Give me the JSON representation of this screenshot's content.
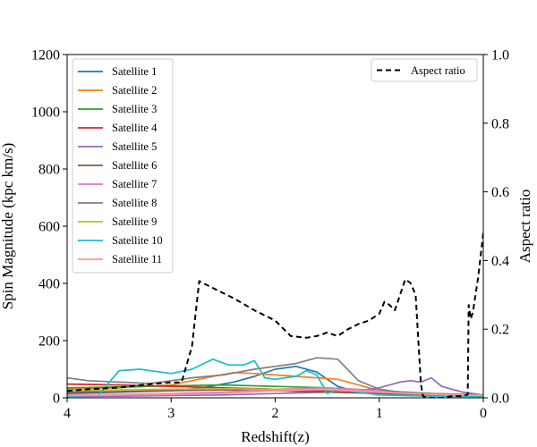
{
  "chart_data": {
    "type": "line",
    "xlabel": "Redshift(z)",
    "ylabel": "Spin Magnitude (kpc km/s)",
    "y2label": "Aspect ratio",
    "xlim": [
      4,
      0
    ],
    "ylim": [
      0,
      1200
    ],
    "y2lim": [
      0,
      1.0
    ],
    "x_ticks": [
      "4",
      "3",
      "2",
      "1",
      "0"
    ],
    "y_ticks": [
      "0",
      "200",
      "400",
      "600",
      "800",
      "1000",
      "1200"
    ],
    "y2_ticks": [
      "0.0",
      "0.2",
      "0.4",
      "0.6",
      "0.8",
      "1.0"
    ],
    "grid": false,
    "legend_left_position": "upper-left",
    "legend_right_position": "upper-right",
    "series": [
      {
        "name": "Satellite 1",
        "color": "#1f77b4",
        "axis": "left",
        "x": [
          4.0,
          3.5,
          3.0,
          2.7,
          2.4,
          2.2,
          2.0,
          1.8,
          1.6,
          1.4,
          1.2,
          1.0,
          0.8,
          0.6,
          0.4,
          0.2,
          0.0
        ],
        "y": [
          15,
          20,
          25,
          35,
          55,
          75,
          100,
          110,
          90,
          40,
          20,
          15,
          12,
          10,
          8,
          6,
          5
        ]
      },
      {
        "name": "Satellite 2",
        "color": "#ff7f0e",
        "axis": "left",
        "x": [
          4.0,
          3.5,
          3.0,
          2.8,
          2.6,
          2.4,
          2.2,
          2.0,
          1.8,
          1.6,
          1.4,
          1.2,
          1.0,
          0.8,
          0.6,
          0.4,
          0.2,
          0.0
        ],
        "y": [
          30,
          35,
          45,
          60,
          75,
          88,
          85,
          80,
          75,
          70,
          65,
          45,
          25,
          20,
          15,
          12,
          10,
          8
        ]
      },
      {
        "name": "Satellite 3",
        "color": "#2ca02c",
        "axis": "left",
        "x": [
          4.0,
          3.5,
          3.0,
          2.5,
          2.0,
          1.5,
          1.0,
          0.5,
          0.0
        ],
        "y": [
          35,
          38,
          42,
          45,
          40,
          35,
          25,
          15,
          10
        ]
      },
      {
        "name": "Satellite 4",
        "color": "#d62728",
        "axis": "left",
        "x": [
          4.0,
          3.5,
          3.0,
          2.5,
          2.0,
          1.5,
          1.0,
          0.5,
          0.0
        ],
        "y": [
          48,
          45,
          40,
          35,
          30,
          25,
          18,
          10,
          8
        ]
      },
      {
        "name": "Satellite 5",
        "color": "#9467bd",
        "axis": "left",
        "x": [
          4.0,
          3.5,
          3.0,
          2.5,
          2.0,
          1.5,
          1.2,
          1.0,
          0.9,
          0.8,
          0.7,
          0.6,
          0.5,
          0.4,
          0.3,
          0.2,
          0.1,
          0.0
        ],
        "y": [
          5,
          6,
          8,
          10,
          15,
          20,
          25,
          35,
          45,
          55,
          60,
          55,
          70,
          40,
          30,
          20,
          15,
          10
        ]
      },
      {
        "name": "Satellite 6",
        "color": "#8c564b",
        "axis": "left",
        "x": [
          4.0,
          3.5,
          3.0,
          2.5,
          2.0,
          1.5,
          1.0,
          0.5,
          0.0
        ],
        "y": [
          20,
          22,
          25,
          28,
          25,
          20,
          15,
          12,
          8
        ]
      },
      {
        "name": "Satellite 7",
        "color": "#e377c2",
        "axis": "left",
        "x": [
          4.0,
          3.5,
          3.0,
          2.5,
          2.0,
          1.5,
          1.0,
          0.5,
          0.0
        ],
        "y": [
          10,
          12,
          15,
          20,
          30,
          35,
          25,
          15,
          10
        ]
      },
      {
        "name": "Satellite 8",
        "color": "#7f7f7f",
        "axis": "left",
        "x": [
          4.0,
          3.8,
          3.5,
          3.2,
          3.0,
          2.8,
          2.5,
          2.2,
          2.0,
          1.8,
          1.6,
          1.4,
          1.2,
          1.0,
          0.8,
          0.5,
          0.0
        ],
        "y": [
          70,
          60,
          55,
          50,
          60,
          70,
          80,
          100,
          110,
          120,
          140,
          135,
          60,
          30,
          20,
          15,
          10
        ]
      },
      {
        "name": "Satellite 9",
        "color": "#bcbd22",
        "axis": "left",
        "x": [
          4.0,
          3.5,
          3.0,
          2.5,
          2.0,
          1.5,
          1.0,
          0.5,
          0.0
        ],
        "y": [
          25,
          28,
          30,
          32,
          30,
          28,
          20,
          12,
          8
        ]
      },
      {
        "name": "Satellite 10",
        "color": "#17becf",
        "axis": "left",
        "x": [
          4.0,
          3.7,
          3.5,
          3.3,
          3.0,
          2.8,
          2.6,
          2.45,
          2.3,
          2.2,
          2.1,
          2.0,
          1.8,
          1.7,
          1.6,
          1.5,
          1.4,
          1.2,
          1.0,
          0.8,
          0.5,
          0.0
        ],
        "y": [
          5,
          10,
          95,
          100,
          85,
          100,
          135,
          115,
          115,
          130,
          70,
          65,
          75,
          95,
          80,
          15,
          30,
          20,
          10,
          8,
          6,
          5
        ]
      },
      {
        "name": "Satellite 11",
        "color": "#ff9896",
        "axis": "left",
        "x": [
          4.0,
          3.5,
          3.0,
          2.5,
          2.0,
          1.5,
          1.0,
          0.5,
          0.0
        ],
        "y": [
          8,
          10,
          12,
          15,
          25,
          30,
          20,
          12,
          8
        ]
      },
      {
        "name": "Aspect ratio",
        "color": "#000000",
        "axis": "right",
        "dash": true,
        "x": [
          4.0,
          3.8,
          3.5,
          3.2,
          3.0,
          2.9,
          2.8,
          2.73,
          2.6,
          2.4,
          2.2,
          2.0,
          1.85,
          1.7,
          1.6,
          1.5,
          1.4,
          1.3,
          1.2,
          1.1,
          1.0,
          0.95,
          0.9,
          0.85,
          0.8,
          0.75,
          0.7,
          0.65,
          0.6,
          0.58,
          0.55,
          0.4,
          0.3,
          0.2,
          0.15,
          0.14,
          0.12,
          0.1,
          0.05,
          0.0
        ],
        "y": [
          0.02,
          0.025,
          0.03,
          0.04,
          0.045,
          0.045,
          0.15,
          0.34,
          0.32,
          0.29,
          0.255,
          0.225,
          0.18,
          0.175,
          0.18,
          0.19,
          0.18,
          0.2,
          0.215,
          0.225,
          0.245,
          0.28,
          0.27,
          0.255,
          0.3,
          0.345,
          0.335,
          0.3,
          0.04,
          0.005,
          0.0,
          0.0,
          0.005,
          0.005,
          0.01,
          0.27,
          0.23,
          0.25,
          0.35,
          0.48
        ]
      }
    ]
  }
}
